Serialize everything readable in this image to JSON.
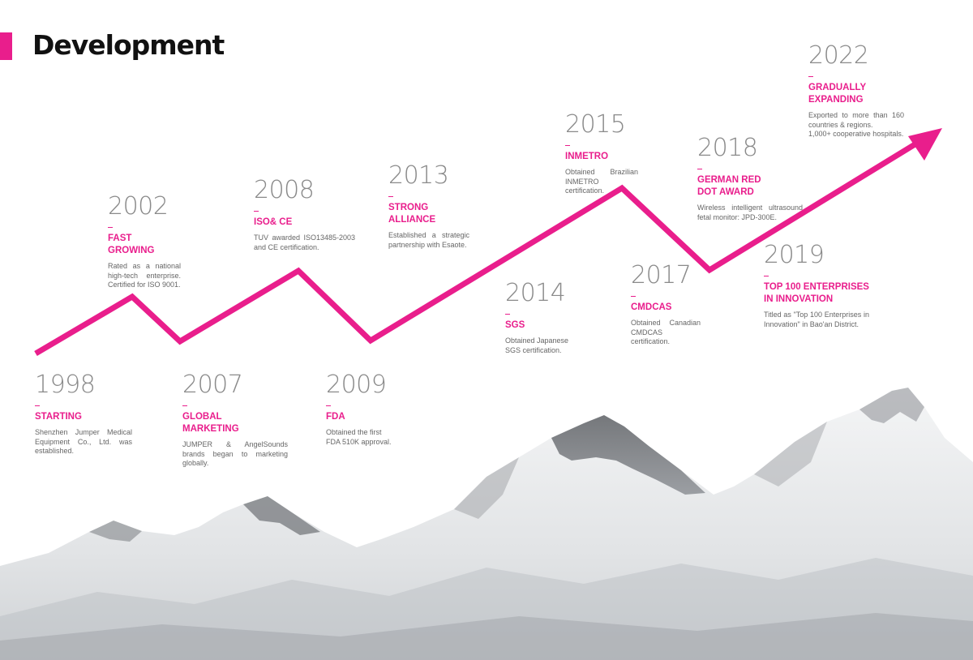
{
  "header": {
    "title": "Development"
  },
  "colors": {
    "accent": "#e91e8c",
    "year_gray": "#8a8a8a",
    "text_gray": "#666666"
  },
  "milestones": [
    {
      "year": "1998",
      "label": "STARTING",
      "desc": "Shenzhen Jumper Medical Equipment Co., Ltd. was established."
    },
    {
      "year": "2002",
      "label": "FAST\nGROWING",
      "desc": "Rated as a national high-tech enterprise. Certified for ISO 9001."
    },
    {
      "year": "2007",
      "label": "GLOBAL\nMARKETING",
      "desc": "JUMPER & AngelSounds brands began to marketing globally."
    },
    {
      "year": "2008",
      "label": "ISO& CE",
      "desc": "TUV awarded ISO13485-2003 and CE certification."
    },
    {
      "year": "2009",
      "label": "FDA",
      "desc": "Obtained the first\nFDA 510K approval."
    },
    {
      "year": "2013",
      "label": "STRONG\nALLIANCE",
      "desc": "Established a strategic partnership with Esaote."
    },
    {
      "year": "2014",
      "label": "SGS",
      "desc": "Obtained Japanese\nSGS certification."
    },
    {
      "year": "2015",
      "label": "INMETRO",
      "desc": "Obtained Brazilian INMETRO certification."
    },
    {
      "year": "2017",
      "label": "CMDCAS",
      "desc": "Obtained Canadian CMDCAS certification."
    },
    {
      "year": "2018",
      "label": "GERMAN RED\nDOT AWARD",
      "desc": "Wireless intelligent ultrasound fetal monitor: JPD-300E."
    },
    {
      "year": "2019",
      "label": "TOP 100 ENTERPRISES\nIN INNOVATION",
      "desc": "Titled as \"Top 100 Enterprises in Innovation\" in Bao'an District."
    },
    {
      "year": "2022",
      "label": "GRADUALLY\nEXPANDING",
      "desc": "Exported to more than 160 countries & regions.\n1,000+ cooperative hospitals."
    }
  ]
}
